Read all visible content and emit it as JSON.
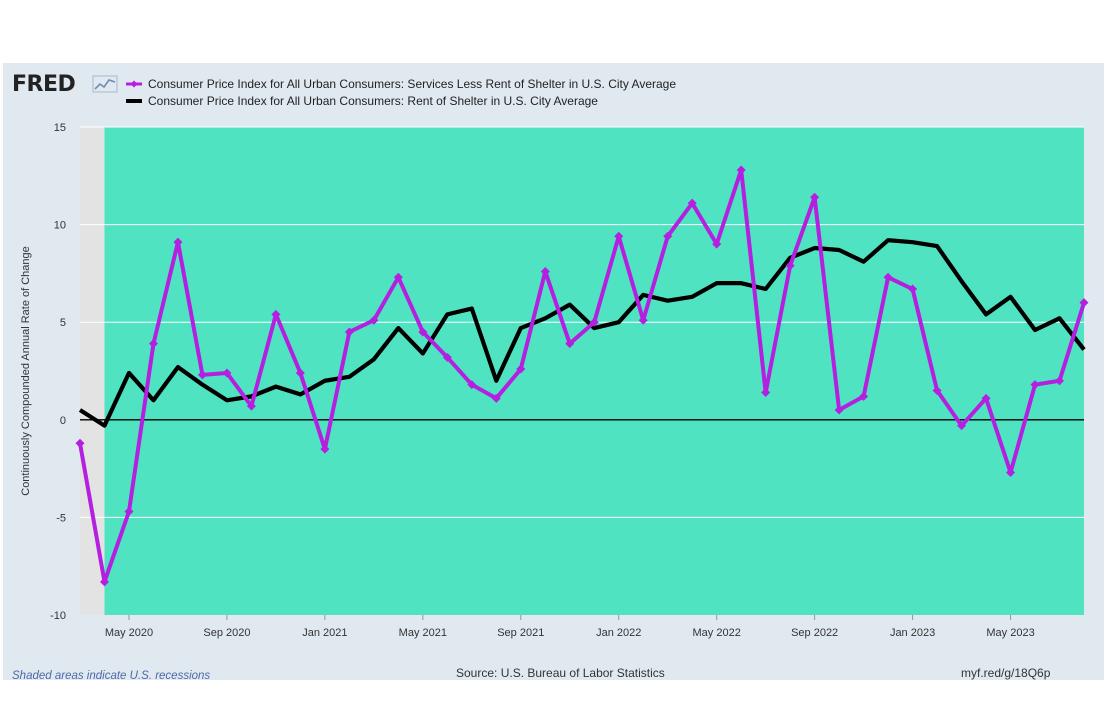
{
  "header": {
    "logo_text": "FRED",
    "logo_icon": "trend-line-icon"
  },
  "colors": {
    "plot_background": "#50e3c2",
    "recession_shade": "#e3e3e3",
    "series_services": "#b520e0",
    "series_shelter": "#000000",
    "panel_background": "#e1e9f0"
  },
  "chart_data": {
    "type": "line",
    "ylabel": "Continuously Compounded Annual Rate of Change",
    "ylim": [
      -10,
      15
    ],
    "yticks": [
      "15",
      "10",
      "5",
      "0",
      "-5",
      "-10"
    ],
    "xticks": [
      "May 2020",
      "Sep 2020",
      "Jan 2021",
      "May 2021",
      "Sep 2021",
      "Jan 2022",
      "May 2022",
      "Sep 2022",
      "Jan 2023",
      "May 2023"
    ],
    "x": [
      "2020-03",
      "2020-04",
      "2020-05",
      "2020-06",
      "2020-07",
      "2020-08",
      "2020-09",
      "2020-10",
      "2020-11",
      "2020-12",
      "2021-01",
      "2021-02",
      "2021-03",
      "2021-04",
      "2021-05",
      "2021-06",
      "2021-07",
      "2021-08",
      "2021-09",
      "2021-10",
      "2021-11",
      "2021-12",
      "2022-01",
      "2022-02",
      "2022-03",
      "2022-04",
      "2022-05",
      "2022-06",
      "2022-07",
      "2022-08",
      "2022-09",
      "2022-10",
      "2022-11",
      "2022-12",
      "2023-01",
      "2023-02",
      "2023-03",
      "2023-04",
      "2023-05",
      "2023-06",
      "2023-07",
      "2023-08"
    ],
    "series": [
      {
        "name": "Consumer Price Index for All Urban Consumers: Services Less Rent of Shelter in U.S. City Average",
        "values": [
          -1.2,
          -8.3,
          -4.7,
          3.9,
          9.1,
          2.3,
          2.4,
          0.7,
          5.4,
          2.4,
          -1.5,
          4.5,
          5.1,
          7.3,
          4.5,
          3.2,
          1.8,
          1.1,
          2.6,
          7.6,
          3.9,
          5.0,
          9.4,
          5.1,
          9.4,
          11.1,
          9.0,
          12.8,
          1.4,
          7.9,
          11.4,
          0.5,
          1.2,
          7.3,
          6.7,
          1.5,
          -0.3,
          1.1,
          -2.7,
          1.8,
          2.0,
          6.0
        ],
        "color": "#b520e0"
      },
      {
        "name": "Consumer Price Index for All Urban Consumers: Rent of Shelter in U.S. City Average",
        "values": [
          0.5,
          -0.3,
          2.4,
          1.0,
          2.7,
          1.8,
          1.0,
          1.2,
          1.7,
          1.3,
          2.0,
          2.2,
          3.1,
          4.7,
          3.4,
          5.4,
          5.7,
          2.0,
          4.7,
          5.2,
          5.9,
          4.7,
          5.0,
          6.4,
          6.1,
          6.3,
          7.0,
          7.0,
          6.7,
          8.3,
          8.8,
          8.7,
          8.1,
          9.2,
          9.1,
          8.9,
          7.1,
          5.4,
          6.3,
          4.6,
          5.2,
          3.6
        ],
        "color": "#000000"
      }
    ],
    "recession_band": {
      "start": "2020-03",
      "end": "2020-04"
    },
    "grid": true,
    "legend": "top-left"
  },
  "footer": {
    "note": "Shaded areas indicate U.S. recessions",
    "source": "Source: U.S. Bureau of Labor Statistics",
    "link": "myf.red/g/18Q6p"
  }
}
